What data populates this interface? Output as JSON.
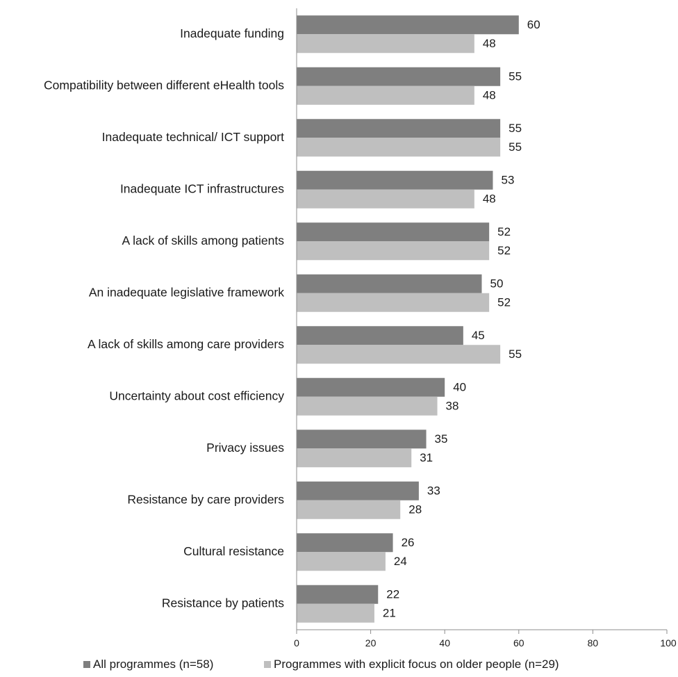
{
  "chart_data": {
    "type": "bar",
    "orientation": "horizontal",
    "categories": [
      "Inadequate funding",
      "Compatibility between different eHealth tools",
      "Inadequate technical/ ICT support",
      "Inadequate ICT infrastructures",
      "A lack of skills among patients",
      "An inadequate legislative framework",
      "A lack of skills among care providers",
      "Uncertainty about cost efficiency",
      "Privacy issues",
      "Resistance by care providers",
      "Cultural resistance",
      "Resistance by patients"
    ],
    "series": [
      {
        "name": "All programmes (n=58)",
        "color": "#7f7f7f",
        "values": [
          60,
          55,
          55,
          53,
          52,
          50,
          45,
          40,
          35,
          33,
          26,
          22
        ]
      },
      {
        "name": "Programmes with explicit focus on older people (n=29)",
        "color": "#bfbfbf",
        "values": [
          48,
          48,
          55,
          48,
          52,
          52,
          55,
          38,
          31,
          28,
          24,
          21
        ]
      }
    ],
    "xlim": [
      0,
      100
    ],
    "xticks": [
      "0",
      "20",
      "40",
      "60",
      "80",
      "100"
    ],
    "grid": false,
    "legend_position": "bottom",
    "title": "",
    "xlabel": "",
    "ylabel": ""
  }
}
